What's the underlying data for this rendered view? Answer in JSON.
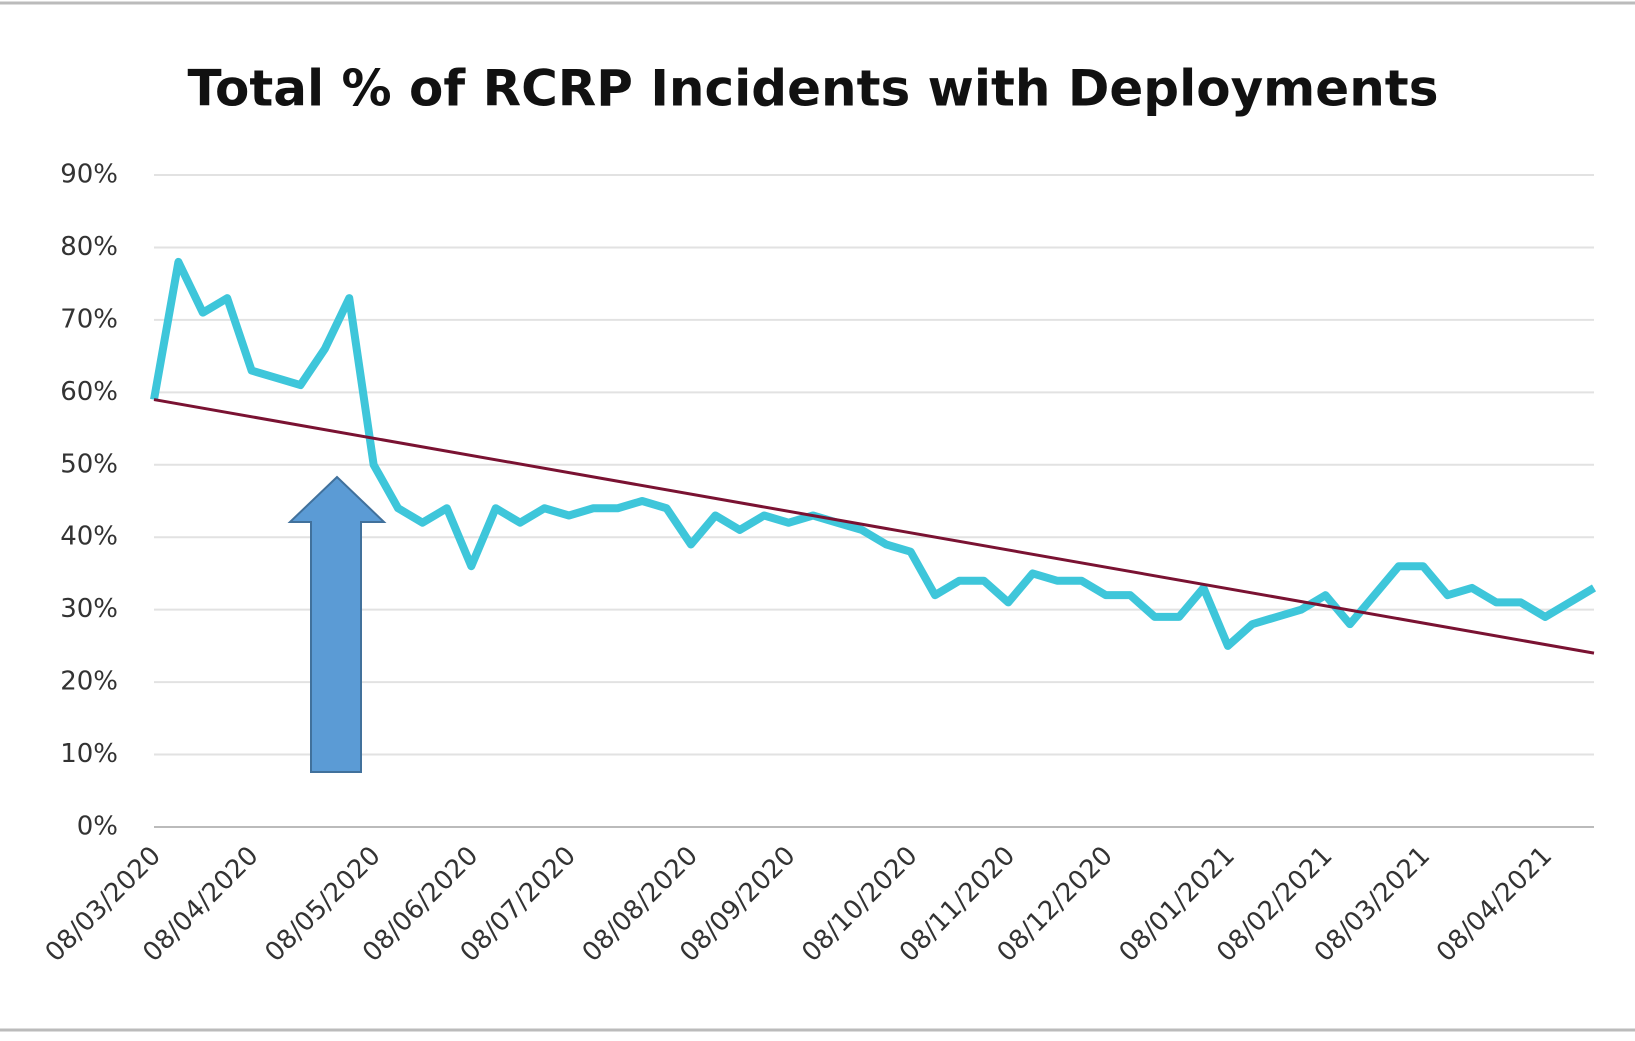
{
  "chart_data": {
    "type": "line",
    "title": "Total % of RCRP Incidents with Deployments",
    "categories": [
      "08/03/2020",
      null,
      null,
      null,
      "08/04/2020",
      null,
      null,
      null,
      null,
      "08/05/2020",
      null,
      null,
      null,
      "08/06/2020",
      null,
      null,
      null,
      "08/07/2020",
      null,
      null,
      null,
      null,
      "08/08/2020",
      null,
      null,
      null,
      "08/09/2020",
      null,
      null,
      null,
      null,
      "08/10/2020",
      null,
      null,
      null,
      "08/11/2020",
      null,
      null,
      null,
      "08/12/2020",
      null,
      null,
      null,
      null,
      "08/01/2021",
      null,
      null,
      null,
      "08/02/2021",
      null,
      null,
      null,
      "08/03/2021",
      null,
      null,
      null,
      null,
      "08/04/2021",
      null,
      null
    ],
    "series": [
      {
        "color": "#3ec6da",
        "values": [
          59,
          78,
          71,
          73,
          63,
          62,
          61,
          66,
          73,
          50,
          44,
          42,
          44,
          36,
          44,
          42,
          44,
          43,
          44,
          44,
          45,
          44,
          39,
          43,
          41,
          43,
          42,
          43,
          42,
          41,
          39,
          38,
          32,
          34,
          34,
          31,
          35,
          34,
          34,
          32,
          32,
          29,
          29,
          33,
          25,
          28,
          29,
          30,
          32,
          28,
          32,
          36,
          36,
          32,
          33,
          31,
          31,
          29,
          31,
          33
        ]
      }
    ],
    "trendline": {
      "start": 59,
      "end": 24,
      "color": "#7a1232"
    },
    "ylim": [
      0,
      90
    ],
    "yticks": [
      {
        "value": 0,
        "label": "0%"
      },
      {
        "value": 10,
        "label": "10%"
      },
      {
        "value": 20,
        "label": "20%"
      },
      {
        "value": 30,
        "label": "30%"
      },
      {
        "value": 40,
        "label": "40%"
      },
      {
        "value": 50,
        "label": "50%"
      },
      {
        "value": 60,
        "label": "60%"
      },
      {
        "value": 70,
        "label": "70%"
      },
      {
        "value": 80,
        "label": "80%"
      },
      {
        "value": 90,
        "label": "90%"
      }
    ],
    "grid": true
  }
}
